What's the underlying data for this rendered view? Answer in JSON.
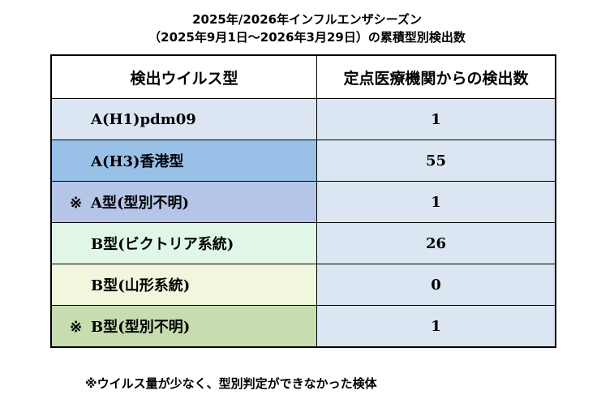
{
  "title": {
    "line1": "2025年/2026年インフルエンザシーズン",
    "line2": "（2025年9月1日～2026年3月29日）の累積型別検出数"
  },
  "table": {
    "headers": [
      "検出ウイルス型",
      "定点医療機関からの検出数"
    ],
    "rows": [
      {
        "mark": "",
        "name": "A(H1)pdm09",
        "count": "1",
        "color": "#dce6f2"
      },
      {
        "mark": "",
        "name": "A(H3)香港型",
        "count": "55",
        "color": "#99c0e6"
      },
      {
        "mark": "※",
        "name": "A型(型別不明)",
        "count": "1",
        "color": "#b4c5e8"
      },
      {
        "mark": "",
        "name": "B型(ビクトリア系統)",
        "count": "26",
        "color": "#e0f7e8"
      },
      {
        "mark": "",
        "name": "B型(山形系統)",
        "count": "0",
        "color": "#f0f7dc"
      },
      {
        "mark": "※",
        "name": "B型(型別不明)",
        "count": "1",
        "color": "#c7ddb0"
      }
    ],
    "count_cell_color": "#dce6f2"
  },
  "footnote": "※ウイルス量が少なく、型別判定ができなかった検体"
}
